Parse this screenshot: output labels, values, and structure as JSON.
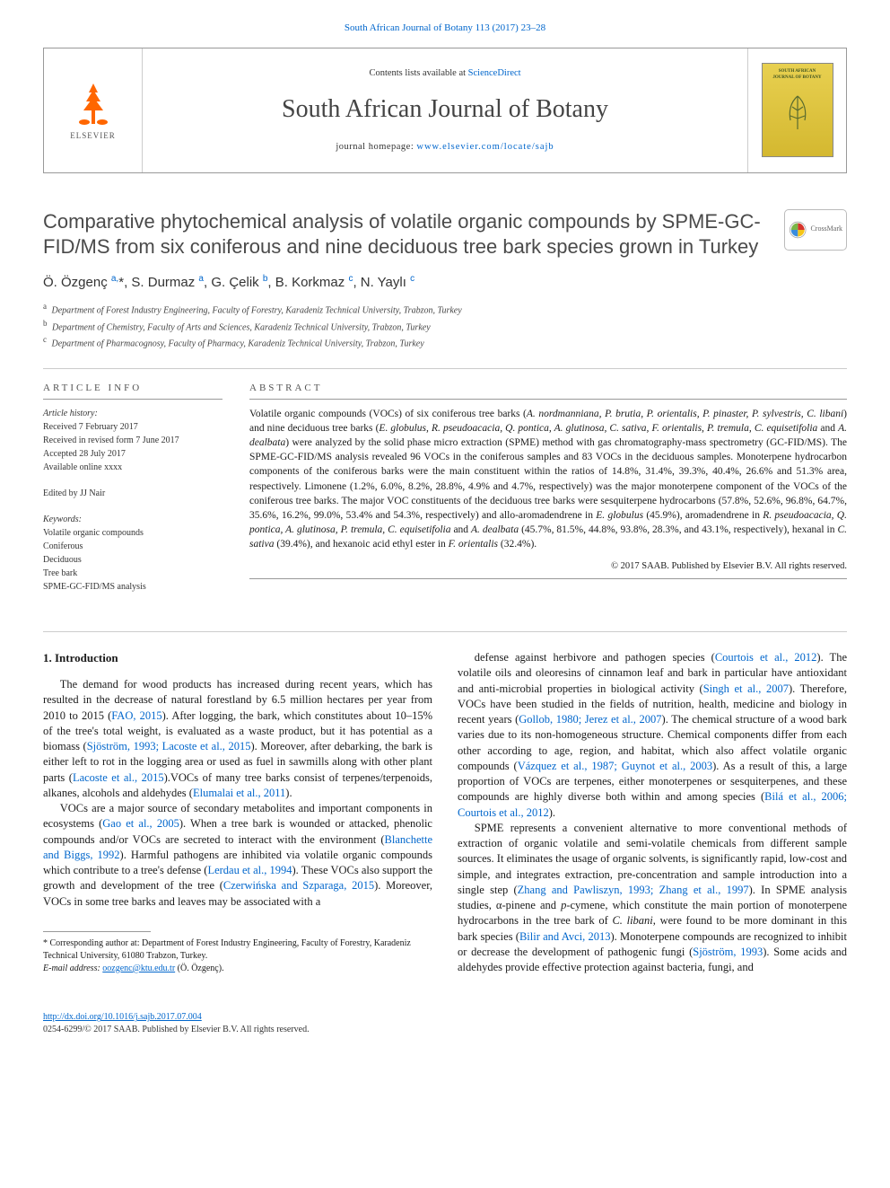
{
  "journal_ref": "South African Journal of Botany 113 (2017) 23–28",
  "header": {
    "contents_text": "Contents lists available at ",
    "contents_link": "ScienceDirect",
    "journal_name": "South African Journal of Botany",
    "homepage_label": "journal homepage: ",
    "homepage_url": "www.elsevier.com/locate/sajb",
    "elsevier_label": "ELSEVIER",
    "cover_title_1": "SOUTH AFRICAN",
    "cover_title_2": "JOURNAL OF BOTANY"
  },
  "crossmark_label": "CrossMark",
  "title": "Comparative phytochemical analysis of volatile organic compounds by SPME-GC-FID/MS from six coniferous and nine deciduous tree bark species grown in Turkey",
  "authors_html": "Ö. Özgenç <sup>a,</sup><span class='ast'>*</span>, S. Durmaz <sup>a</sup>, G. Çelik <sup>b</sup>, B. Korkmaz <sup>c</sup>, N. Yaylı <sup>c</sup>",
  "affiliations": [
    {
      "sup": "a",
      "text": "Department of Forest Industry Engineering, Faculty of Forestry, Karadeniz Technical University, Trabzon, Turkey"
    },
    {
      "sup": "b",
      "text": "Department of Chemistry, Faculty of Arts and Sciences, Karadeniz Technical University, Trabzon, Turkey"
    },
    {
      "sup": "c",
      "text": "Department of Pharmacognosy, Faculty of Pharmacy, Karadeniz Technical University, Trabzon, Turkey"
    }
  ],
  "article_info": {
    "heading": "article info",
    "history_label": "Article history:",
    "history": [
      "Received 7 February 2017",
      "Received in revised form 7 June 2017",
      "Accepted 28 July 2017",
      "Available online xxxx"
    ],
    "edited_by": "Edited by JJ Nair",
    "keywords_label": "Keywords:",
    "keywords": [
      "Volatile organic compounds",
      "Coniferous",
      "Deciduous",
      "Tree bark",
      "SPME-GC-FID/MS analysis"
    ]
  },
  "abstract": {
    "heading": "abstract",
    "text_html": "Volatile organic compounds (VOCs) of six coniferous tree barks (<em>A. nordmanniana, P. brutia, P. orientalis, P. pinaster, P. sylvestris, C. libani</em>) and nine deciduous tree barks (<em>E. globulus, R. pseudoacacia, Q. pontica, A. glutinosa, C. sativa, F. orientalis, P. tremula, C. equisetifolia</em> and <em>A. dealbata</em>) were analyzed by the solid phase micro extraction (SPME) method with gas chromatography-mass spectrometry (GC-FID/MS). The SPME-GC-FID/MS analysis revealed 96 VOCs in the coniferous samples and 83 VOCs in the deciduous samples. Monoterpene hydrocarbon components of the coniferous barks were the main constituent within the ratios of 14.8%, 31.4%, 39.3%, 40.4%, 26.6% and 51.3% area, respectively. Limonene (1.2%, 6.0%, 8.2%, 28.8%, 4.9% and 4.7%, respectively) was the major monoterpene component of the VOCs of the coniferous tree barks. The major VOC constituents of the deciduous tree barks were sesquiterpene hydrocarbons (57.8%, 52.6%, 96.8%, 64.7%, 35.6%, 16.2%, 99.0%, 53.4% and 54.3%, respectively) and allo-aromadendrene in <em>E. globulus</em> (45.9%), aromadendrene in <em>R. pseudoacacia, Q. pontica, A. glutinosa, P. tremula, C. equisetifolia</em> and <em>A. dealbata</em> (45.7%, 81.5%, 44.8%, 93.8%, 28.3%, and 43.1%, respectively), hexanal in <em>C. sativa</em> (39.4%), and hexanoic acid ethyl ester in <em>F. orientalis</em> (32.4%).",
    "copyright": "© 2017 SAAB. Published by Elsevier B.V. All rights reserved."
  },
  "section": {
    "title": "1. Introduction",
    "p1_html": "The demand for wood products has increased during recent years, which has resulted in the decrease of natural forestland by 6.5 million hectares per year from 2010 to 2015 (<span class='ref-link'>FAO, 2015</span>). After logging, the bark, which constitutes about 10–15% of the tree's total weight, is evaluated as a waste product, but it has potential as a biomass (<span class='ref-link'>Sjöström, 1993; Lacoste et al., 2015</span>). Moreover, after debarking, the bark is either left to rot in the logging area or used as fuel in sawmills along with other plant parts (<span class='ref-link'>Lacoste et al., 2015</span>).VOCs of many tree barks consist of terpenes/terpenoids, alkanes, alcohols and aldehydes (<span class='ref-link'>Elumalai et al., 2011</span>).",
    "p2_html": "VOCs are a major source of secondary metabolites and important components in ecosystems (<span class='ref-link'>Gao et al., 2005</span>). When a tree bark is wounded or attacked, phenolic compounds and/or VOCs are secreted to interact with the environment (<span class='ref-link'>Blanchette and Biggs, 1992</span>). Harmful pathogens are inhibited via volatile organic compounds which contribute to a tree's defense (<span class='ref-link'>Lerdau et al., 1994</span>). These VOCs also support the growth and development of the tree (<span class='ref-link'>Czerwińska and Szparaga, 2015</span>). Moreover, VOCs in some tree barks and leaves may be associated with a",
    "p3_html": "defense against herbivore and pathogen species (<span class='ref-link'>Courtois et al., 2012</span>). The volatile oils and oleoresins of cinnamon leaf and bark in particular have antioxidant and anti-microbial properties in biological activity (<span class='ref-link'>Singh et al., 2007</span>). Therefore, VOCs have been studied in the fields of nutrition, health, medicine and biology in recent years (<span class='ref-link'>Gollob, 1980; Jerez et al., 2007</span>). The chemical structure of a wood bark varies due to its non-homogeneous structure. Chemical components differ from each other according to age, region, and habitat, which also affect volatile organic compounds (<span class='ref-link'>Vázquez et al., 1987; Guynot et al., 2003</span>). As a result of this, a large proportion of VOCs are terpenes, either monoterpenes or sesquiterpenes, and these compounds are highly diverse both within and among species (<span class='ref-link'>Bilá et al., 2006; Courtois et al., 2012</span>).",
    "p4_html": "SPME represents a convenient alternative to more conventional methods of extraction of organic volatile and semi-volatile chemicals from different sample sources. It eliminates the usage of organic solvents, is significantly rapid, low-cost and simple, and integrates extraction, pre-concentration and sample introduction into a single step (<span class='ref-link'>Zhang and Pawliszyn, 1993; Zhang et al., 1997</span>). In SPME analysis studies, α-pinene and <em>p</em>-cymene, which constitute the main portion of monoterpene hydrocarbons in the tree bark of <em>C. libani</em>, were found to be more dominant in this bark species (<span class='ref-link'>Bilir and Avci, 2013</span>). Monoterpene compounds are recognized to inhibit or decrease the development of pathogenic fungi (<span class='ref-link'>Sjöström, 1993</span>). Some acids and aldehydes provide effective protection against bacteria, fungi, and"
  },
  "footnote": {
    "corr_label": "* Corresponding author at: Department of Forest Industry Engineering, Faculty of Forestry, Karadeniz Technical University, 61080 Trabzon, Turkey.",
    "email_label": "E-mail address:",
    "email": "oozgenc@ktu.edu.tr",
    "email_name": "(Ö. Özgenç)."
  },
  "footer": {
    "doi": "http://dx.doi.org/10.1016/j.sajb.2017.07.004",
    "issn_line": "0254-6299/© 2017 SAAB. Published by Elsevier B.V. All rights reserved."
  },
  "colors": {
    "link": "#0066cc",
    "elsevier_orange": "#ff6600",
    "cover_bg_top": "#e8d050",
    "cover_bg_bottom": "#d4b830",
    "text_gray": "#4a4a4a"
  }
}
